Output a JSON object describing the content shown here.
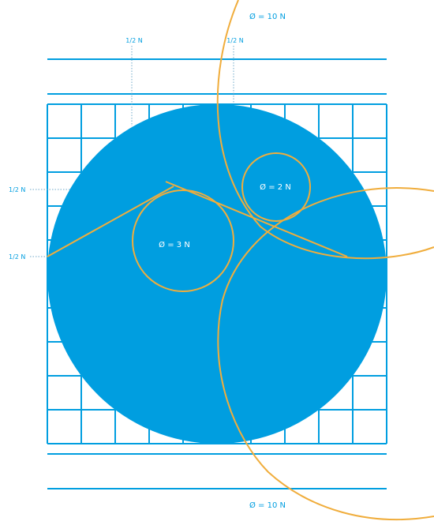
{
  "colors": {
    "blue": "#009ee0",
    "orange": "#f0ad3c",
    "white": "#ffffff",
    "guide": "#6fa8c8"
  },
  "labels": {
    "top_diameter": "Ø = 10 N",
    "bottom_diameter": "Ø = 10 N",
    "small_circle": "Ø = 2 N",
    "medium_circle": "Ø = 3 N",
    "top_left_half": "1/2 N",
    "top_right_half": "1/2 N",
    "left_upper_half": "1/2 N",
    "left_lower_half": "1/2 N"
  }
}
